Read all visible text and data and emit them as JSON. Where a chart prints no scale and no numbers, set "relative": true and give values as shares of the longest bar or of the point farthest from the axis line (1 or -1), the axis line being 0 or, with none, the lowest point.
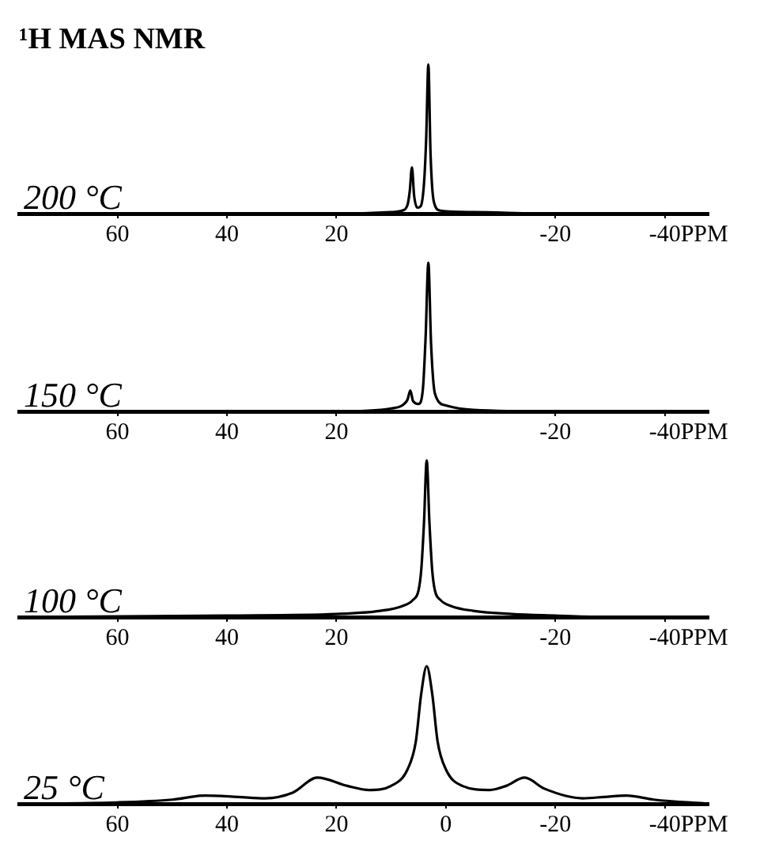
{
  "chart_data": [
    {
      "type": "line",
      "title": "¹H MAS NMR",
      "annotations": [
        "200 °C"
      ],
      "xlabel": "PPM",
      "relative": true,
      "xlim": [
        78,
        -48
      ],
      "xticks": [
        60,
        40,
        20,
        -20,
        -40
      ],
      "x": [
        78,
        20,
        10,
        8,
        7,
        6.6,
        6.2,
        5.8,
        5.2,
        4.6,
        4.0,
        3.6,
        3.2,
        2.8,
        2.2,
        1,
        -5,
        -20,
        -48
      ],
      "series": [
        {
          "color": "#000000",
          "values": [
            0,
            0,
            0.01,
            0.02,
            0.06,
            0.15,
            0.31,
            0.12,
            0.04,
            0.05,
            0.2,
            0.5,
            1,
            0.4,
            0.08,
            0.02,
            0.01,
            0,
            0
          ]
        }
      ]
    },
    {
      "type": "line",
      "annotations": [
        "150 °C"
      ],
      "xlabel": "PPM",
      "relative": true,
      "xlim": [
        78,
        -48
      ],
      "xticks": [
        60,
        40,
        20,
        -20,
        -40
      ],
      "x": [
        78,
        20,
        10,
        8,
        7,
        6.5,
        6,
        5,
        4.2,
        3.7,
        3.2,
        2.7,
        2,
        0,
        -5,
        -20,
        -48
      ],
      "series": [
        {
          "color": "#000000",
          "values": [
            0,
            0,
            0.02,
            0.04,
            0.08,
            0.14,
            0.07,
            0.05,
            0.15,
            0.5,
            1,
            0.45,
            0.12,
            0.04,
            0.01,
            0,
            0
          ]
        }
      ]
    },
    {
      "type": "line",
      "annotations": [
        "100 °C"
      ],
      "xlabel": "PPM",
      "relative": true,
      "xlim": [
        78,
        -48
      ],
      "xticks": [
        60,
        40,
        20,
        -20,
        -40
      ],
      "x": [
        78,
        40,
        20,
        12,
        8,
        6,
        5,
        4.5,
        4,
        3.5,
        3,
        2.5,
        2,
        1,
        -1,
        -5,
        -12,
        -20,
        -30,
        -48
      ],
      "series": [
        {
          "color": "#000000",
          "values": [
            0,
            0.01,
            0.02,
            0.04,
            0.07,
            0.11,
            0.17,
            0.3,
            0.6,
            1,
            0.6,
            0.3,
            0.17,
            0.11,
            0.07,
            0.04,
            0.02,
            0.01,
            0,
            0
          ]
        }
      ]
    },
    {
      "type": "line",
      "annotations": [
        "25 °C"
      ],
      "xlabel": "PPM",
      "relative": true,
      "xlim": [
        78,
        -48
      ],
      "xticks": [
        60,
        40,
        20,
        0,
        -20,
        -40
      ],
      "x": [
        78,
        60,
        50,
        44,
        38,
        33,
        28,
        23.5,
        18,
        14,
        10,
        7,
        5.5,
        4.5,
        3.5,
        2.5,
        1.5,
        0,
        -3,
        -8,
        -11,
        -14.4,
        -18,
        -25,
        -29,
        -33,
        -38,
        -48
      ],
      "series": [
        {
          "color": "#000000",
          "values": [
            0,
            0.01,
            0.03,
            0.06,
            0.05,
            0.04,
            0.08,
            0.19,
            0.13,
            0.1,
            0.13,
            0.25,
            0.45,
            0.8,
            1,
            0.8,
            0.45,
            0.25,
            0.13,
            0.1,
            0.13,
            0.19,
            0.11,
            0.04,
            0.05,
            0.06,
            0.03,
            0
          ]
        }
      ]
    }
  ]
}
